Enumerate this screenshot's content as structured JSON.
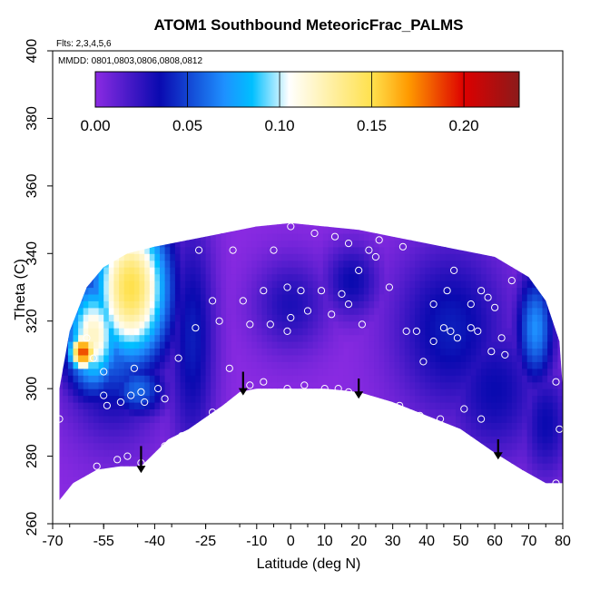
{
  "chart_data": {
    "type": "heatmap",
    "title": "ATOM1 Southbound MeteoricFrac_PALMS",
    "flights_note": "Flts: 2,3,4,5,6",
    "dates_note": "MMDD: 0801,0803,0806,0808,0812",
    "xlabel": "Latitude (deg N)",
    "ylabel": "Theta (C)",
    "xlim": [
      -70,
      80
    ],
    "ylim": [
      260,
      400
    ],
    "x_ticks": [
      -70,
      -55,
      -40,
      -25,
      -10,
      0,
      10,
      20,
      30,
      40,
      50,
      60,
      70,
      80
    ],
    "x_tick_labels": [
      "-70",
      "-55",
      "-40",
      "-25",
      "-10",
      "0",
      "10",
      "20",
      "30",
      "40",
      "50",
      "60",
      "70",
      "80"
    ],
    "y_ticks": [
      260,
      280,
      300,
      320,
      340,
      360,
      380,
      400
    ],
    "y_tick_labels": [
      "260",
      "280",
      "300",
      "320",
      "340",
      "360",
      "380",
      "400"
    ],
    "colorbar": {
      "min": 0.0,
      "max": 0.23,
      "ticks": [
        0.0,
        0.05,
        0.1,
        0.15,
        0.2
      ],
      "tick_labels": [
        "0.00",
        "0.05",
        "0.10",
        "0.15",
        "0.20"
      ],
      "colors": [
        "#8b2be2",
        "#0a0ab0",
        "#1e90ff",
        "#00bfff",
        "#ffffff",
        "#ffe14d",
        "#ff9a00",
        "#dd0000",
        "#8b1a1a"
      ]
    },
    "field_hotspots": [
      {
        "lat": -47,
        "theta": 330,
        "value": 0.15,
        "sigma_lat": 8,
        "sigma_theta": 16
      },
      {
        "lat": -58,
        "theta": 316,
        "value": 0.12,
        "sigma_lat": 6,
        "sigma_theta": 12
      },
      {
        "lat": -61,
        "theta": 311,
        "value": 0.19,
        "sigma_lat": 3,
        "sigma_theta": 4
      },
      {
        "lat": -52,
        "theta": 320,
        "value": 0.07,
        "sigma_lat": 10,
        "sigma_theta": 20
      },
      {
        "lat": -29,
        "theta": 315,
        "value": 0.04,
        "sigma_lat": 5,
        "sigma_theta": 25
      },
      {
        "lat": 72,
        "theta": 318,
        "value": 0.07,
        "sigma_lat": 4,
        "sigma_theta": 12
      },
      {
        "lat": 0,
        "theta": 325,
        "value": 0.03,
        "sigma_lat": 8,
        "sigma_theta": 10
      },
      {
        "lat": 18,
        "theta": 332,
        "value": 0.035,
        "sigma_lat": 6,
        "sigma_theta": 8
      },
      {
        "lat": 47,
        "theta": 318,
        "value": 0.04,
        "sigma_lat": 12,
        "sigma_theta": 18
      },
      {
        "lat": 60,
        "theta": 300,
        "value": 0.035,
        "sigma_lat": 10,
        "sigma_theta": 15
      },
      {
        "lat": 75,
        "theta": 290,
        "value": 0.035,
        "sigma_lat": 5,
        "sigma_theta": 12
      },
      {
        "lat": -45,
        "theta": 300,
        "value": 0.06,
        "sigma_lat": 6,
        "sigma_theta": 6
      }
    ],
    "envelope_top": [
      [
        -68,
        300
      ],
      [
        -65,
        317
      ],
      [
        -60,
        330
      ],
      [
        -55,
        336
      ],
      [
        -48,
        340
      ],
      [
        -40,
        342
      ],
      [
        -30,
        344
      ],
      [
        -20,
        346
      ],
      [
        -10,
        348
      ],
      [
        0,
        349
      ],
      [
        10,
        348
      ],
      [
        20,
        347
      ],
      [
        30,
        345
      ],
      [
        40,
        343
      ],
      [
        50,
        341
      ],
      [
        60,
        339
      ],
      [
        70,
        333
      ],
      [
        75,
        326
      ],
      [
        79,
        314
      ],
      [
        80,
        300
      ]
    ],
    "envelope_bottom": [
      [
        80,
        272
      ],
      [
        75,
        272
      ],
      [
        68,
        276
      ],
      [
        60,
        281
      ],
      [
        50,
        288
      ],
      [
        40,
        292
      ],
      [
        30,
        296
      ],
      [
        20,
        299
      ],
      [
        10,
        300
      ],
      [
        0,
        300
      ],
      [
        -10,
        300
      ],
      [
        -15,
        299
      ],
      [
        -20,
        295
      ],
      [
        -30,
        288
      ],
      [
        -36,
        285
      ],
      [
        -40,
        281
      ],
      [
        -44,
        277
      ],
      [
        -50,
        277
      ],
      [
        -57,
        276
      ],
      [
        -64,
        272
      ],
      [
        -68,
        267
      ]
    ],
    "observations": [
      {
        "lat": -68,
        "theta": 291
      },
      {
        "lat": -57,
        "theta": 277
      },
      {
        "lat": -54,
        "theta": 295
      },
      {
        "lat": -51,
        "theta": 279
      },
      {
        "lat": -48,
        "theta": 280
      },
      {
        "lat": -44,
        "theta": 278
      },
      {
        "lat": -37,
        "theta": 283
      },
      {
        "lat": -32,
        "theta": 286
      },
      {
        "lat": -23,
        "theta": 293
      },
      {
        "lat": -55,
        "theta": 298
      },
      {
        "lat": -50,
        "theta": 296
      },
      {
        "lat": -47,
        "theta": 298
      },
      {
        "lat": -44,
        "theta": 299
      },
      {
        "lat": -43,
        "theta": 296
      },
      {
        "lat": -39,
        "theta": 300
      },
      {
        "lat": -37,
        "theta": 297
      },
      {
        "lat": -46,
        "theta": 306
      },
      {
        "lat": -55,
        "theta": 305
      },
      {
        "lat": -33,
        "theta": 309
      },
      {
        "lat": -58,
        "theta": 309
      },
      {
        "lat": -60,
        "theta": 315
      },
      {
        "lat": -28,
        "theta": 318
      },
      {
        "lat": -21,
        "theta": 320
      },
      {
        "lat": -12,
        "theta": 319
      },
      {
        "lat": -6,
        "theta": 319
      },
      {
        "lat": -14,
        "theta": 326
      },
      {
        "lat": -23,
        "theta": 326
      },
      {
        "lat": -8,
        "theta": 329
      },
      {
        "lat": -1,
        "theta": 330
      },
      {
        "lat": 3,
        "theta": 329
      },
      {
        "lat": 0,
        "theta": 321
      },
      {
        "lat": -1,
        "theta": 317
      },
      {
        "lat": 5,
        "theta": 323
      },
      {
        "lat": 12,
        "theta": 322
      },
      {
        "lat": 15,
        "theta": 328
      },
      {
        "lat": 9,
        "theta": 329
      },
      {
        "lat": 17,
        "theta": 325
      },
      {
        "lat": 21,
        "theta": 319
      },
      {
        "lat": -18,
        "theta": 306
      },
      {
        "lat": -27,
        "theta": 341
      },
      {
        "lat": -17,
        "theta": 341
      },
      {
        "lat": -5,
        "theta": 341
      },
      {
        "lat": 0,
        "theta": 348
      },
      {
        "lat": 7,
        "theta": 346
      },
      {
        "lat": 13,
        "theta": 345
      },
      {
        "lat": 17,
        "theta": 343
      },
      {
        "lat": 23,
        "theta": 341
      },
      {
        "lat": 20,
        "theta": 335
      },
      {
        "lat": 25,
        "theta": 339
      },
      {
        "lat": 26,
        "theta": 344
      },
      {
        "lat": 29,
        "theta": 330
      },
      {
        "lat": 33,
        "theta": 342
      },
      {
        "lat": 48,
        "theta": 335
      },
      {
        "lat": 42,
        "theta": 325
      },
      {
        "lat": 46,
        "theta": 329
      },
      {
        "lat": 53,
        "theta": 325
      },
      {
        "lat": 60,
        "theta": 324
      },
      {
        "lat": 58,
        "theta": 327
      },
      {
        "lat": 56,
        "theta": 329
      },
      {
        "lat": 65,
        "theta": 332
      },
      {
        "lat": 34,
        "theta": 317
      },
      {
        "lat": 37,
        "theta": 317
      },
      {
        "lat": 42,
        "theta": 314
      },
      {
        "lat": 45,
        "theta": 318
      },
      {
        "lat": 49,
        "theta": 315
      },
      {
        "lat": 47,
        "theta": 317
      },
      {
        "lat": 55,
        "theta": 317
      },
      {
        "lat": 53,
        "theta": 318
      },
      {
        "lat": 62,
        "theta": 315
      },
      {
        "lat": 59,
        "theta": 311
      },
      {
        "lat": 63,
        "theta": 310
      },
      {
        "lat": 39,
        "theta": 308
      },
      {
        "lat": -12,
        "theta": 301
      },
      {
        "lat": -8,
        "theta": 302
      },
      {
        "lat": -1,
        "theta": 300
      },
      {
        "lat": 4,
        "theta": 301
      },
      {
        "lat": 10,
        "theta": 300
      },
      {
        "lat": 14,
        "theta": 300
      },
      {
        "lat": 17,
        "theta": 299
      },
      {
        "lat": 32,
        "theta": 295
      },
      {
        "lat": 38,
        "theta": 292
      },
      {
        "lat": 44,
        "theta": 291
      },
      {
        "lat": 51,
        "theta": 294
      },
      {
        "lat": 56,
        "theta": 291
      },
      {
        "lat": 78,
        "theta": 302
      },
      {
        "lat": 79,
        "theta": 288
      },
      {
        "lat": 78,
        "theta": 272
      },
      {
        "lat": 0,
        "theta": 299
      }
    ],
    "arrows": [
      {
        "lat": -44,
        "theta_top": 283,
        "theta_tip": 275
      },
      {
        "lat": -14,
        "theta_top": 305,
        "theta_tip": 298
      },
      {
        "lat": 20,
        "theta_top": 303,
        "theta_tip": 297
      },
      {
        "lat": 61,
        "theta_top": 285,
        "theta_tip": 279
      }
    ]
  }
}
